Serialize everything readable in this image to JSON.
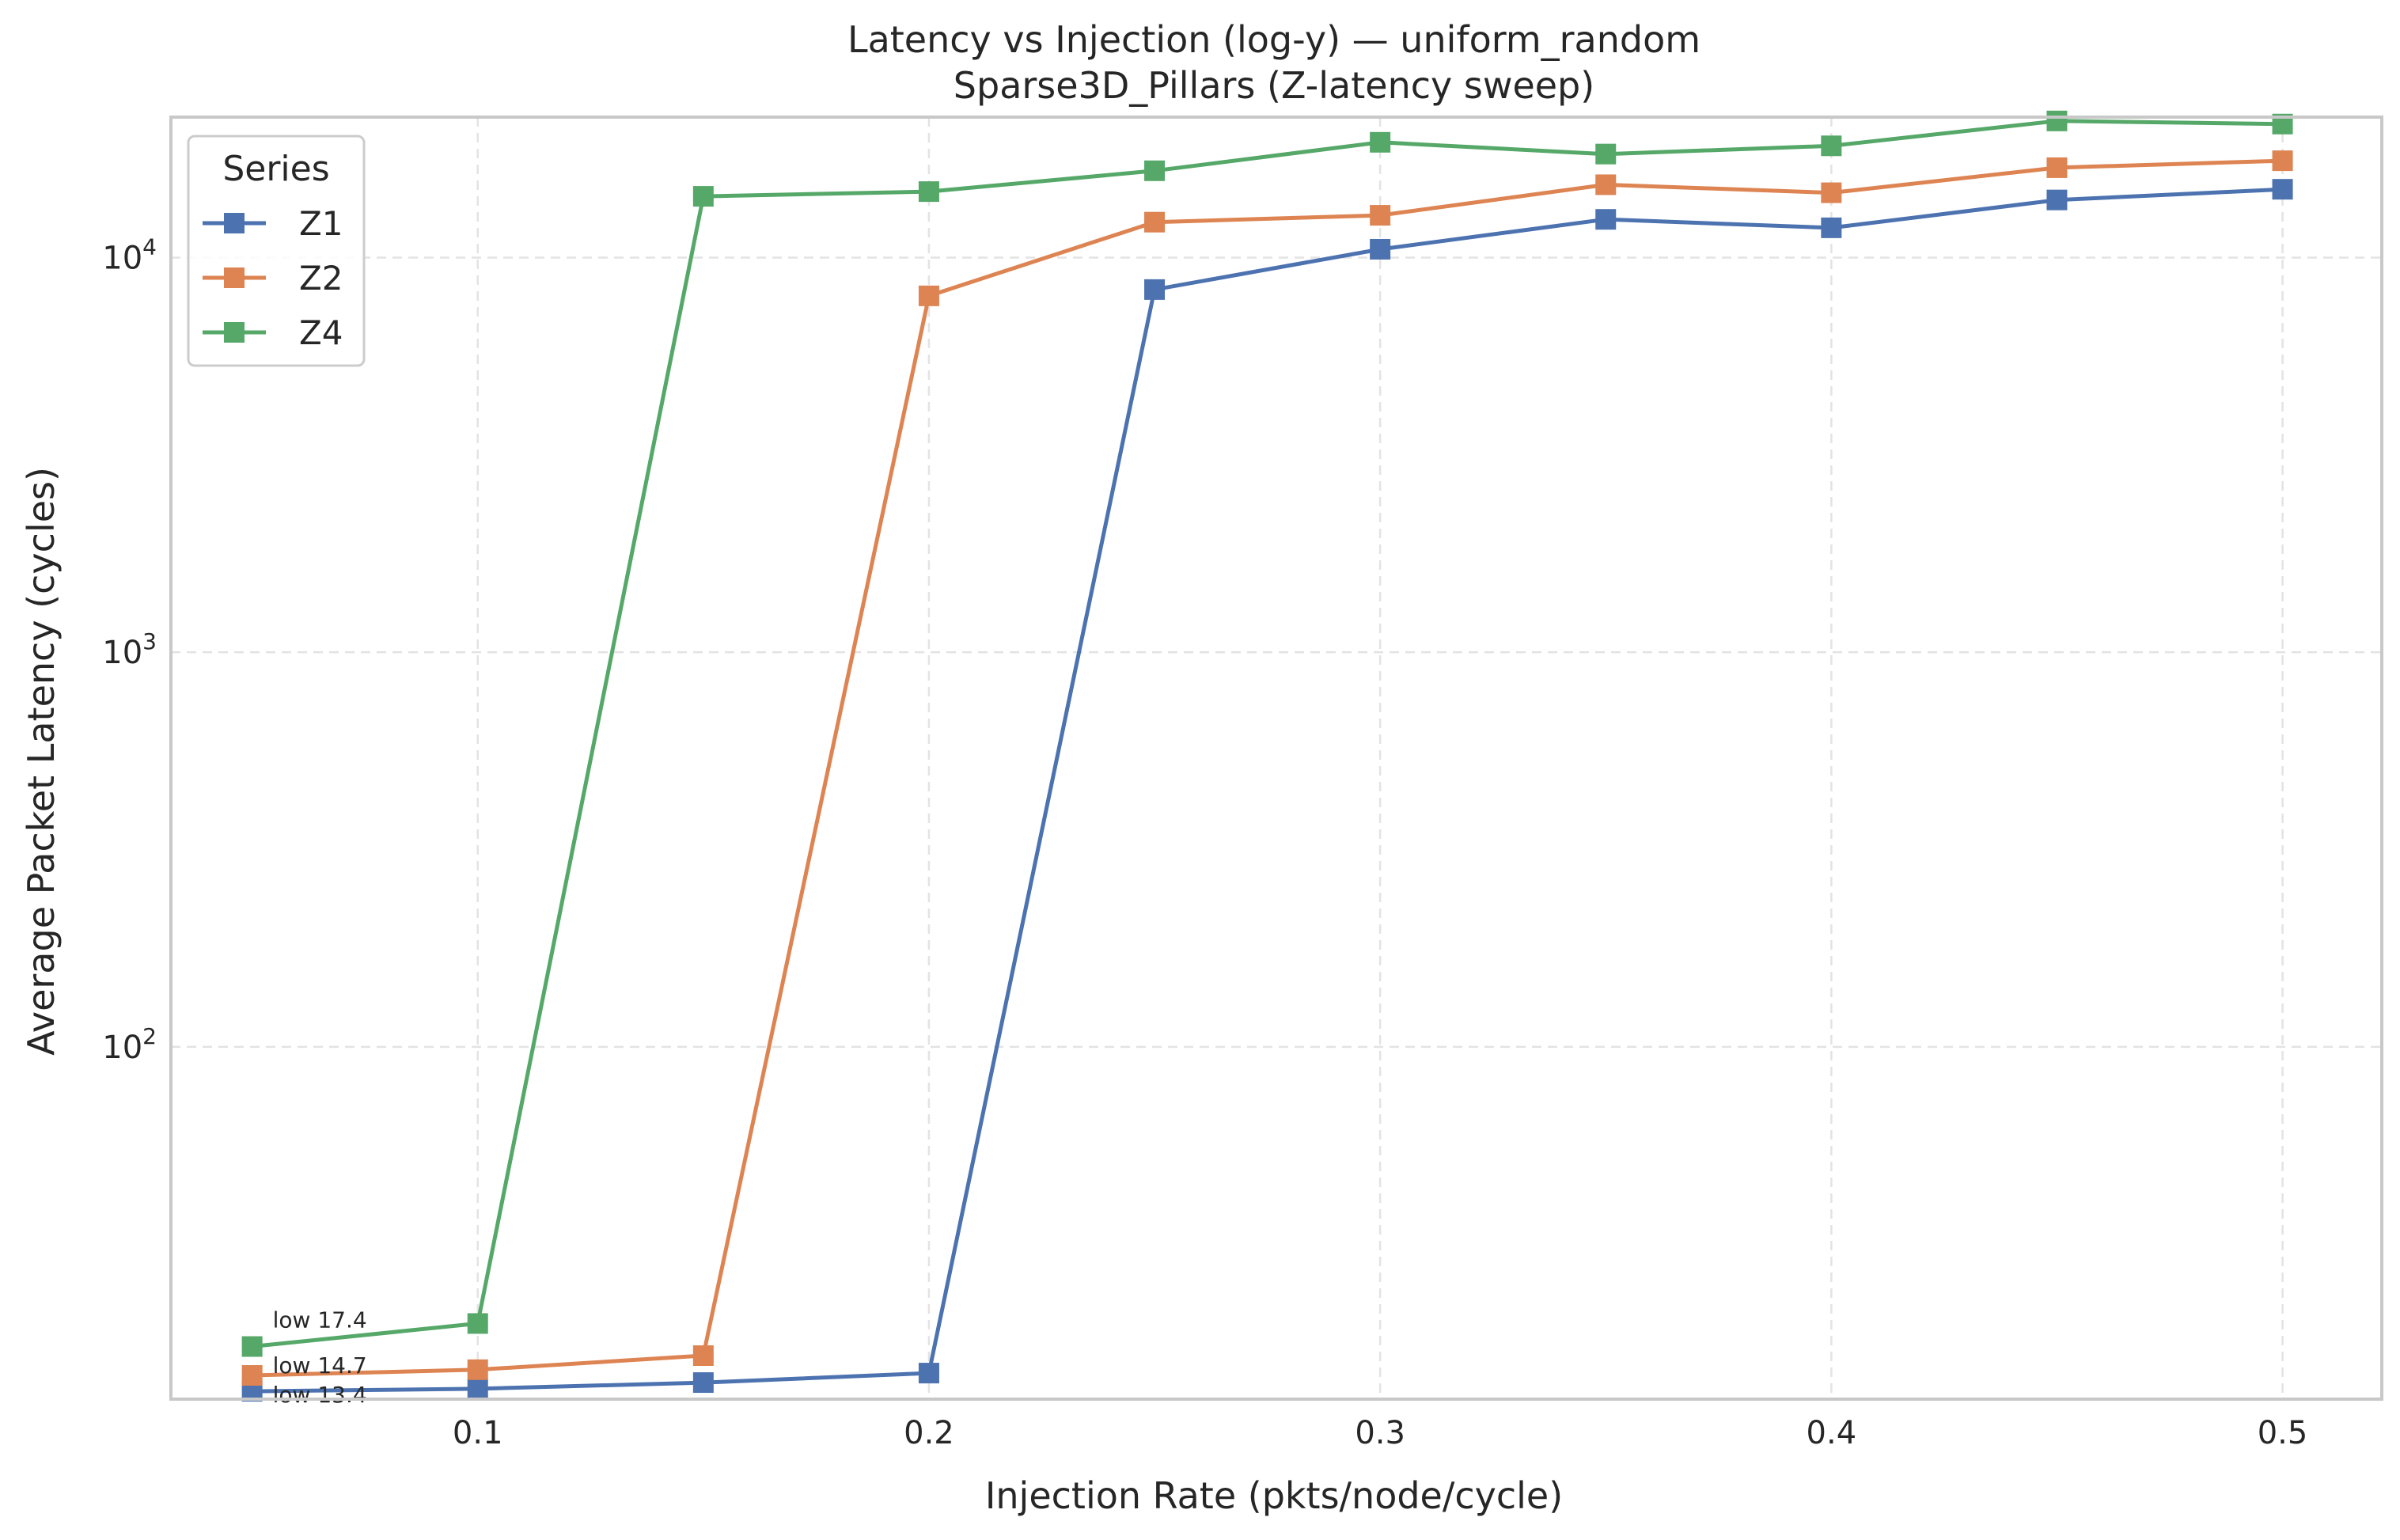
{
  "chart_data": {
    "type": "line",
    "title": "Latency vs Injection (log-y) — uniform_random",
    "subtitle": "Sparse3D_Pillars (Z-latency sweep)",
    "xlabel": "Injection Rate (pkts/node/cycle)",
    "ylabel": "Average Packet Latency (cycles)",
    "yscale": "log",
    "xlim": [
      0.032,
      0.522
    ],
    "ylim": [
      12.8,
      22700
    ],
    "x_ticks": [
      "0.1",
      "0.2",
      "0.3",
      "0.4",
      "0.5"
    ],
    "x_tick_values": [
      0.1,
      0.2,
      0.3,
      0.4,
      0.5
    ],
    "y_ticks": [
      {
        "value": 100,
        "base": "10",
        "exp": "2"
      },
      {
        "value": 1000,
        "base": "10",
        "exp": "3"
      },
      {
        "value": 10000,
        "base": "10",
        "exp": "4"
      }
    ],
    "grid": true,
    "legend": {
      "title": "Series",
      "position": "top-left"
    },
    "x": [
      0.05,
      0.1,
      0.15,
      0.2,
      0.25,
      0.3,
      0.35,
      0.4,
      0.45,
      0.5
    ],
    "series": [
      {
        "name": "Z1",
        "color": "#4c72b0",
        "marker": "square",
        "values": [
          13.4,
          13.6,
          14.1,
          14.9,
          8300,
          10500,
          12500,
          11900,
          14000,
          14900
        ]
      },
      {
        "name": "Z2",
        "color": "#dd8452",
        "marker": "square",
        "values": [
          14.7,
          15.2,
          16.5,
          8000,
          12300,
          12800,
          15300,
          14600,
          16900,
          17600
        ]
      },
      {
        "name": "Z4",
        "color": "#55a868",
        "marker": "square",
        "values": [
          17.4,
          19.9,
          14300,
          14700,
          16600,
          19600,
          18300,
          19200,
          22200,
          21800
        ]
      }
    ],
    "annotations": [
      {
        "text": "low 17.4",
        "series": "Z4"
      },
      {
        "text": "low 14.7",
        "series": "Z2"
      },
      {
        "text": "low 13.4",
        "series": "Z1"
      }
    ]
  }
}
